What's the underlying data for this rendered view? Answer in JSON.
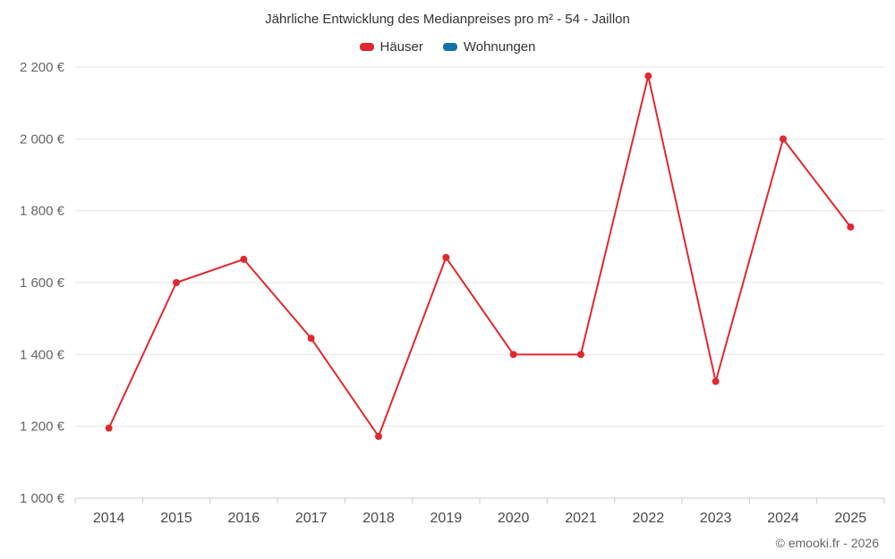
{
  "header": {
    "title": "Jährliche Entwicklung des Medianpreises pro m² - 54 - Jaillon"
  },
  "legend": {
    "items": [
      {
        "label": "Häuser",
        "color": "#e0282f"
      },
      {
        "label": "Wohnungen",
        "color": "#1272ab"
      }
    ]
  },
  "footer": {
    "credit": "© emooki.fr - 2026"
  },
  "chart_data": {
    "type": "line",
    "title": "Jährliche Entwicklung des Medianpreises pro m² - 54 - Jaillon",
    "categories": [
      "2014",
      "2015",
      "2016",
      "2017",
      "2018",
      "2019",
      "2020",
      "2021",
      "2022",
      "2023",
      "2024",
      "2025"
    ],
    "series": [
      {
        "name": "Häuser",
        "color": "#e0282f",
        "values": [
          1195,
          1600,
          1665,
          1445,
          1172,
          1670,
          1400,
          1400,
          2175,
          1325,
          2000,
          1755
        ]
      },
      {
        "name": "Wohnungen",
        "color": "#1272ab",
        "values": []
      }
    ],
    "xlabel": "",
    "ylabel": "",
    "ylim": [
      1000,
      2200
    ],
    "ytick_step": 200,
    "ytick_suffix": " €",
    "grid": "horizontal",
    "legend_position": "top",
    "colors": {
      "gridline": "#e6e6e6",
      "axis_line": "#cccccc",
      "tick": "#cccccc",
      "y_label": "#666666",
      "x_label": "#4a4a4a"
    }
  }
}
